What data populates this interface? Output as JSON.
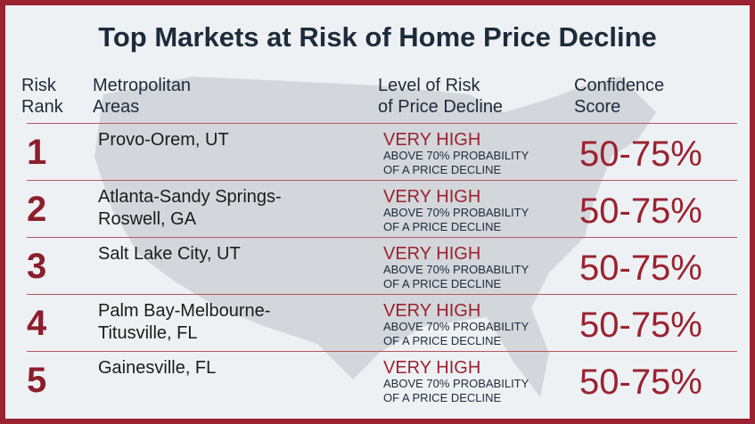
{
  "title": "Top Markets at Risk of Home Price Decline",
  "headers": {
    "rank": "Risk\nRank",
    "area": "Metropolitan\nAreas",
    "level": "Level of Risk\nof Price Decline",
    "score": "Confidence\nScore"
  },
  "rows": [
    {
      "rank": "1",
      "area": "Provo-Orem, UT",
      "level": "VERY HIGH",
      "desc1": "ABOVE 70% PROBABILITY",
      "desc2": "OF A PRICE DECLINE",
      "score": "50-75%"
    },
    {
      "rank": "2",
      "area": "Atlanta-Sandy Springs-\nRoswell, GA",
      "level": "VERY HIGH",
      "desc1": "ABOVE 70% PROBABILITY",
      "desc2": "OF A PRICE DECLINE",
      "score": "50-75%"
    },
    {
      "rank": "3",
      "area": "Salt Lake City, UT",
      "level": "VERY HIGH",
      "desc1": "ABOVE 70% PROBABILITY",
      "desc2": "OF A PRICE DECLINE",
      "score": "50-75%"
    },
    {
      "rank": "4",
      "area": "Palm Bay-Melbourne-\nTitusville, FL",
      "level": "VERY HIGH",
      "desc1": "ABOVE 70% PROBABILITY",
      "desc2": "OF A PRICE DECLINE",
      "score": "50-75%"
    },
    {
      "rank": "5",
      "area": "Gainesville, FL",
      "level": "VERY HIGH",
      "desc1": "ABOVE 70% PROBABILITY",
      "desc2": "OF A PRICE DECLINE",
      "score": "50-75%"
    }
  ],
  "colors": {
    "accent": "#9b2230",
    "text": "#1e2b3b",
    "background": "#eef1f4"
  }
}
